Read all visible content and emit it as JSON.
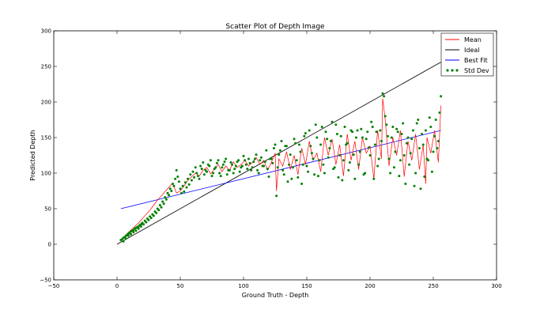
{
  "chart_data": {
    "type": "scatter",
    "title": "Scatter Plot of Depth Image",
    "xlabel": "Ground Truth - Depth",
    "ylabel": "Predicted Depth",
    "xlim": [
      -50,
      300
    ],
    "ylim": [
      -50,
      300
    ],
    "xticks": [
      "−50",
      "0",
      "50",
      "100",
      "150",
      "200",
      "250",
      "300"
    ],
    "yticks": [
      "−50",
      "0",
      "50",
      "100",
      "150",
      "200",
      "250",
      "300"
    ],
    "grid": false,
    "legend_position": "top-right",
    "legend": [
      {
        "label": "Mean",
        "color": "#ff0000",
        "marker": "line"
      },
      {
        "label": "Ideal",
        "color": "#000000",
        "marker": "line"
      },
      {
        "label": "Best Fit",
        "color": "#0000ff",
        "marker": "line"
      },
      {
        "label": "Std Dev",
        "color": "#008000",
        "marker": "dots"
      }
    ],
    "series": [
      {
        "name": "Mean",
        "color": "#ff0000",
        "x": [
          5,
          8,
          11,
          14,
          17,
          20,
          23,
          26,
          29,
          32,
          35,
          38,
          41,
          44,
          47,
          50,
          53,
          56,
          59,
          62,
          65,
          68,
          71,
          74,
          77,
          80,
          83,
          86,
          89,
          92,
          95,
          98,
          101,
          104,
          107,
          110,
          113,
          116,
          119,
          122,
          125,
          126,
          128,
          131,
          134,
          137,
          140,
          143,
          146,
          149,
          152,
          155,
          158,
          161,
          164,
          167,
          170,
          173,
          176,
          179,
          182,
          185,
          188,
          191,
          194,
          197,
          200,
          203,
          206,
          209,
          210,
          212,
          215,
          218,
          221,
          224,
          227,
          230,
          233,
          236,
          239,
          242,
          244,
          245,
          248,
          251,
          254,
          256
        ],
        "y": [
          8,
          15,
          20,
          25,
          30,
          36,
          42,
          48,
          55,
          62,
          68,
          74,
          80,
          86,
          72,
          75,
          82,
          90,
          95,
          100,
          96,
          104,
          108,
          99,
          106,
          112,
          102,
          110,
          104,
          116,
          108,
          112,
          118,
          110,
          115,
          122,
          112,
          118,
          104,
          115,
          128,
          75,
          120,
          110,
          130,
          105,
          125,
          98,
          135,
          112,
          145,
          118,
          128,
          102,
          150,
          125,
          148,
          112,
          140,
          96,
          155,
          118,
          145,
          105,
          150,
          128,
          138,
          92,
          160,
          120,
          205,
          175,
          110,
          150,
          125,
          160,
          95,
          145,
          118,
          155,
          105,
          140,
          85,
          150,
          128,
          160,
          115,
          195
        ]
      },
      {
        "name": "Ideal",
        "color": "#000000",
        "x": [
          0,
          256
        ],
        "y": [
          0,
          256
        ]
      },
      {
        "name": "Best Fit",
        "color": "#0000ff",
        "x": [
          3,
          256
        ],
        "y": [
          50,
          160
        ]
      },
      {
        "name": "Std Dev",
        "color": "#008000",
        "x": [
          3,
          4,
          5,
          6,
          7,
          8,
          9,
          10,
          11,
          12,
          13,
          14,
          15,
          16,
          17,
          18,
          19,
          20,
          22,
          24,
          26,
          28,
          30,
          32,
          34,
          36,
          38,
          40,
          42,
          44,
          46,
          47,
          48,
          50,
          52,
          54,
          56,
          58,
          60,
          62,
          64,
          66,
          68,
          70,
          72,
          74,
          76,
          78,
          80,
          82,
          84,
          86,
          88,
          90,
          92,
          94,
          96,
          98,
          100,
          102,
          104,
          106,
          108,
          110,
          112,
          114,
          116,
          118,
          120,
          122,
          124,
          125,
          126,
          128,
          130,
          132,
          134,
          136,
          138,
          140,
          142,
          144,
          146,
          148,
          150,
          152,
          154,
          156,
          158,
          160,
          162,
          164,
          166,
          168,
          170,
          172,
          174,
          176,
          178,
          180,
          182,
          184,
          186,
          188,
          190,
          192,
          194,
          196,
          198,
          200,
          202,
          204,
          206,
          208,
          210,
          211,
          212,
          214,
          216,
          218,
          220,
          222,
          224,
          226,
          228,
          230,
          232,
          234,
          236,
          238,
          240,
          242,
          243,
          244,
          246,
          248,
          250,
          252,
          254,
          256,
          5,
          7,
          9,
          11,
          13,
          15,
          17,
          19,
          21,
          23,
          25,
          27,
          29,
          31,
          33,
          35,
          37,
          39,
          41,
          43,
          45,
          49,
          51,
          53,
          55,
          57,
          59,
          61,
          63,
          65,
          67,
          69,
          71,
          73,
          75,
          77,
          79,
          81,
          83,
          85,
          87,
          89,
          91,
          93,
          95,
          97,
          99,
          101,
          103,
          105,
          107,
          109,
          111,
          113,
          115,
          117,
          119,
          121,
          123,
          127,
          129,
          131,
          133,
          135,
          137,
          139,
          141,
          143,
          145,
          147,
          149,
          151,
          153,
          155,
          157,
          159,
          161,
          163,
          165,
          167,
          169,
          171,
          173,
          175,
          177,
          179,
          181,
          183,
          185,
          187,
          189,
          191,
          193,
          195,
          197,
          199,
          201,
          203,
          205,
          207,
          209,
          213,
          215,
          217,
          219,
          221,
          223,
          225,
          227,
          229,
          231,
          233,
          235,
          237,
          239,
          241,
          245,
          247,
          249,
          251,
          253,
          255
        ],
        "y": [
          6,
          7,
          9,
          10,
          12,
          13,
          15,
          16,
          18,
          19,
          20,
          22,
          23,
          24,
          25,
          27,
          28,
          30,
          33,
          36,
          39,
          42,
          46,
          50,
          55,
          60,
          66,
          72,
          78,
          85,
          92,
          104,
          95,
          78,
          82,
          87,
          92,
          98,
          102,
          108,
          96,
          110,
          115,
          104,
          112,
          118,
          100,
          108,
          118,
          96,
          112,
          120,
          104,
          115,
          100,
          110,
          118,
          108,
          124,
          112,
          120,
          104,
          116,
          126,
          100,
          122,
          110,
          132,
          95,
          120,
          135,
          140,
          68,
          126,
          145,
          98,
          138,
          112,
          92,
          148,
          118,
          140,
          85,
          152,
          110,
          160,
          128,
          98,
          150,
          118,
          165,
          100,
          148,
          135,
          172,
          108,
          155,
          125,
          90,
          165,
          142,
          115,
          158,
          92,
          160,
          130,
          150,
          100,
          158,
          125,
          165,
          140,
          110,
          160,
          212,
          208,
          180,
          152,
          100,
          165,
          130,
          158,
          118,
          170,
          85,
          150,
          128,
          160,
          100,
          175,
          78,
          140,
          95,
          160,
          118,
          165,
          130,
          175,
          145,
          208,
          4,
          8,
          12,
          14,
          17,
          19,
          22,
          25,
          28,
          31,
          34,
          37,
          40,
          44,
          48,
          52,
          57,
          63,
          69,
          75,
          82,
          88,
          72,
          74,
          80,
          84,
          90,
          94,
          100,
          92,
          106,
          98,
          102,
          110,
          96,
          106,
          114,
          100,
          108,
          116,
          98,
          104,
          112,
          106,
          116,
          102,
          110,
          118,
          106,
          114,
          108,
          120,
          104,
          118,
          110,
          116,
          106,
          120,
          114,
          108,
          132,
          104,
          138,
          88,
          126,
          108,
          142,
          94,
          130,
          112,
          156,
          102,
          138,
          120,
          168,
          96,
          140,
          112,
          158,
          122,
          145,
          106,
          168,
          94,
          152,
          118,
          140,
          104,
          160,
          126,
          150,
          112,
          162,
          98,
          148,
          136,
          172,
          92,
          158,
          120,
          145,
          168,
          120,
          150,
          108,
          162,
          96,
          155,
          125,
          142,
          112,
          148,
          82,
          170,
          135,
          155,
          120,
          178,
          102,
          152,
          135,
          185
        ]
      }
    ]
  }
}
